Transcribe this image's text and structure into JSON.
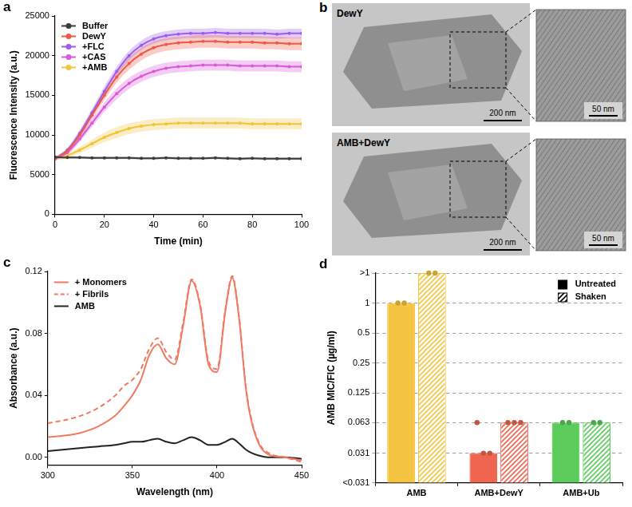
{
  "chart_data": [
    {
      "panel_label": "a",
      "type": "line",
      "x_label": "Time (min)",
      "y_label": "Fluorescence Intensity (a.u.)",
      "x": [
        0,
        5,
        10,
        15,
        20,
        25,
        30,
        35,
        40,
        45,
        50,
        55,
        60,
        65,
        70,
        75,
        80,
        85,
        90,
        95,
        100
      ],
      "series": [
        {
          "name": "Buffer",
          "color": "#3d3d3d",
          "marker": "circle",
          "values": [
            7200,
            7150,
            7150,
            7100,
            7100,
            7100,
            7100,
            7050,
            7050,
            7100,
            7050,
            7050,
            7050,
            7100,
            7050,
            7000,
            7050,
            7000,
            7000,
            7000,
            7000
          ],
          "errors": [
            150,
            150,
            150,
            150,
            150,
            150,
            150,
            150,
            150,
            150,
            150,
            150,
            150,
            150,
            150,
            150,
            150,
            150,
            150,
            150,
            150
          ]
        },
        {
          "name": "DewY",
          "color": "#ee5a45",
          "marker": "circle",
          "values": [
            7000,
            8000,
            10000,
            12500,
            15000,
            17300,
            19000,
            20200,
            21000,
            21400,
            21600,
            21700,
            21800,
            21800,
            21700,
            21700,
            21700,
            21600,
            21600,
            21500,
            21500
          ],
          "errors": [
            200,
            300,
            400,
            500,
            600,
            700,
            800,
            800,
            800,
            800,
            800,
            800,
            800,
            800,
            800,
            800,
            800,
            800,
            800,
            800,
            800
          ]
        },
        {
          "name": "+FLC",
          "color": "#9c5cf0",
          "marker": "circle",
          "values": [
            7000,
            8100,
            10200,
            12800,
            15500,
            18000,
            20000,
            21300,
            22100,
            22500,
            22700,
            22800,
            22800,
            22900,
            22800,
            22800,
            22800,
            22800,
            22700,
            22800,
            22800
          ],
          "errors": [
            200,
            300,
            400,
            500,
            600,
            600,
            600,
            600,
            600,
            600,
            600,
            600,
            600,
            600,
            600,
            600,
            600,
            600,
            600,
            600,
            600
          ]
        },
        {
          "name": "+CAS",
          "color": "#d85ad8",
          "marker": "circle",
          "values": [
            7000,
            7800,
            9500,
            11500,
            13500,
            15200,
            16500,
            17400,
            18000,
            18400,
            18600,
            18700,
            18800,
            18800,
            18800,
            18700,
            18700,
            18700,
            18700,
            18600,
            18600
          ],
          "errors": [
            200,
            300,
            400,
            500,
            600,
            700,
            700,
            700,
            700,
            700,
            700,
            700,
            700,
            700,
            700,
            700,
            700,
            700,
            700,
            700,
            700
          ]
        },
        {
          "name": "+AMB",
          "color": "#f2c43a",
          "marker": "circle",
          "values": [
            7000,
            7400,
            8100,
            8900,
            9700,
            10300,
            10800,
            11100,
            11300,
            11400,
            11500,
            11500,
            11500,
            11500,
            11500,
            11500,
            11400,
            11400,
            11400,
            11400,
            11400
          ],
          "errors": [
            200,
            300,
            400,
            500,
            600,
            700,
            700,
            700,
            700,
            700,
            700,
            700,
            700,
            700,
            700,
            700,
            700,
            700,
            700,
            700,
            700
          ]
        }
      ],
      "xlim": [
        0,
        100
      ],
      "xticks": [
        0,
        20,
        40,
        60,
        80,
        100
      ],
      "ylim": [
        0,
        25000
      ],
      "yticks": [
        0,
        5000,
        10000,
        15000,
        20000,
        25000
      ],
      "grid": false,
      "legend": "top-left"
    },
    {
      "panel_label": "c",
      "type": "line",
      "x_label": "Wavelength (nm)",
      "y_label": "Absorbance (a.u.)",
      "x": [
        300,
        310,
        320,
        330,
        340,
        345,
        350,
        355,
        360,
        365,
        370,
        375,
        380,
        385,
        390,
        395,
        400,
        405,
        409,
        413,
        417,
        420,
        425,
        430,
        440,
        450
      ],
      "series": [
        {
          "name": "+ Monomers",
          "color": "#f07a62",
          "line_style": "solid",
          "values": [
            0.013,
            0.014,
            0.016,
            0.02,
            0.027,
            0.033,
            0.04,
            0.05,
            0.066,
            0.073,
            0.064,
            0.06,
            0.085,
            0.114,
            0.098,
            0.06,
            0.055,
            0.095,
            0.116,
            0.09,
            0.045,
            0.025,
            0.008,
            0.002,
            0,
            -0.002
          ]
        },
        {
          "name": "+ Fibrils",
          "color": "#f07a62",
          "line_style": "dashed",
          "values": [
            0.022,
            0.024,
            0.027,
            0.032,
            0.04,
            0.046,
            0.05,
            0.057,
            0.07,
            0.077,
            0.068,
            0.063,
            0.087,
            0.115,
            0.099,
            0.062,
            0.057,
            0.096,
            0.117,
            0.091,
            0.046,
            0.026,
            0.009,
            0.003,
            0,
            -0.003
          ]
        },
        {
          "name": "AMB",
          "color": "#222222",
          "line_style": "solid",
          "values": [
            0.004,
            0.005,
            0.006,
            0.007,
            0.008,
            0.009,
            0.01,
            0.01,
            0.011,
            0.012,
            0.01,
            0.009,
            0.011,
            0.013,
            0.011,
            0.008,
            0.008,
            0.01,
            0.012,
            0.009,
            0.005,
            0.003,
            0.001,
            0,
            0,
            -0.001
          ]
        }
      ],
      "xlim": [
        300,
        450
      ],
      "xticks": [
        300,
        350,
        400,
        450
      ],
      "ylim": [
        -0.005,
        0.12
      ],
      "yticks": [
        {
          "value": 0,
          "label": "0.00"
        },
        0.04,
        0.08,
        0.12
      ],
      "grid": false,
      "legend": "top-left"
    },
    {
      "panel_label": "d",
      "type": "bar",
      "y_label": "AMB MIC/FIC (µg/ml)",
      "categories": [
        "AMB",
        "AMB+DewY",
        "AMB+Ub"
      ],
      "series": [
        {
          "name": "Untreated",
          "color": "#000000",
          "colors": [
            "#f5c542",
            "#f0654f",
            "#5ccc5c"
          ],
          "values": [
            1,
            0.031,
            0.063
          ],
          "replicates": [
            [
              1,
              1
            ],
            [
              0.063,
              0.031,
              0.031
            ],
            [
              0.063,
              0.063
            ]
          ]
        },
        {
          "name": "Shaken",
          "color": "#000000",
          "colors": [
            "#f5c542",
            "#f0654f",
            "#5ccc5c"
          ],
          "values": [
            2,
            0.063,
            0.063
          ],
          "replicates": [
            [
              2,
              2
            ],
            [
              0.063,
              0.063,
              0.063
            ],
            [
              0.063,
              0.063
            ]
          ]
        }
      ],
      "log": "y",
      "ylim": [
        0.0156,
        2
      ],
      "yticks": [
        {
          "value": 0.0156,
          "label": "<0.031"
        },
        0.031,
        0.063,
        0.125,
        0.25,
        0.5,
        1,
        {
          "value": 2,
          "label": ">1"
        }
      ],
      "grid": true,
      "legend": "top-right"
    }
  ],
  "panel_b": {
    "panel_label": "b",
    "images": [
      {
        "label": "DewY",
        "scale_bar": "200 nm",
        "inset_scale_bar": "50 nm"
      },
      {
        "label": "AMB+DewY",
        "scale_bar": "200 nm",
        "inset_scale_bar": "50 nm"
      }
    ]
  }
}
